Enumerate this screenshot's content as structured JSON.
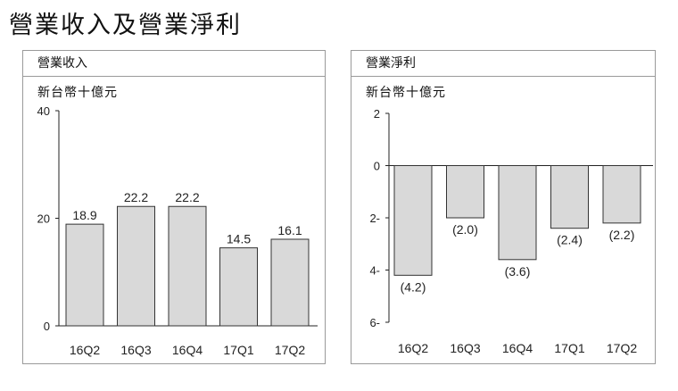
{
  "title": "營業收入及營業淨利",
  "chart_data": [
    {
      "type": "bar",
      "title": "營業收入",
      "unit": "新台幣十億元",
      "categories": [
        "16Q2",
        "16Q3",
        "16Q4",
        "17Q1",
        "17Q2"
      ],
      "values": [
        18.9,
        22.2,
        22.2,
        14.5,
        16.1
      ],
      "value_labels": [
        "18.9",
        "22.2",
        "22.2",
        "14.5",
        "16.1"
      ],
      "ylim": [
        0,
        40
      ],
      "yticks": [
        0,
        20,
        40
      ],
      "ytick_labels": [
        "0",
        "20",
        "40"
      ],
      "grid": false
    },
    {
      "type": "bar",
      "title": "營業淨利",
      "unit": "新台幣十億元",
      "categories": [
        "16Q2",
        "16Q3",
        "16Q4",
        "17Q1",
        "17Q2"
      ],
      "values": [
        -4.2,
        -2.0,
        -3.6,
        -2.4,
        -2.2
      ],
      "value_labels": [
        "(4.2)",
        "(2.0)",
        "(3.6)",
        "(2.4)",
        "(2.2)"
      ],
      "ylim": [
        -6,
        2
      ],
      "yticks": [
        2,
        0,
        -2,
        -4,
        -6
      ],
      "ytick_labels": [
        "2",
        "0",
        "2-",
        "4-",
        "6-"
      ],
      "grid": false
    }
  ]
}
